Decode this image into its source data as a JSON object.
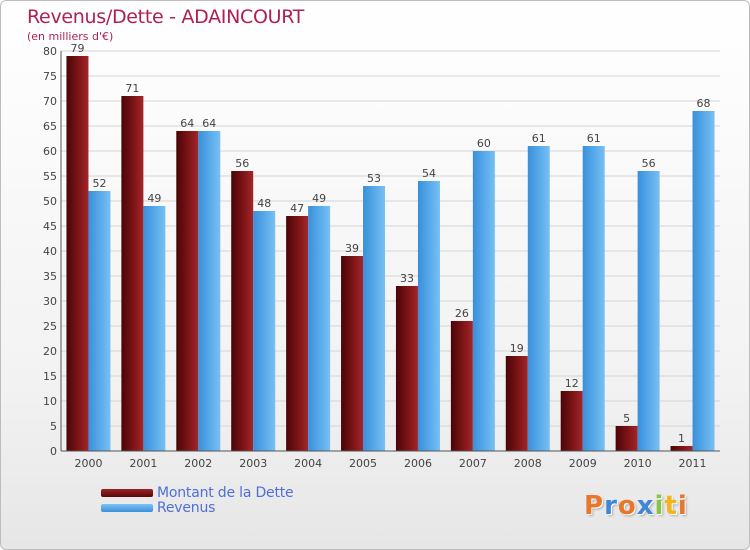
{
  "title": "Revenus/Dette - ADAINCOURT",
  "subtitle": "(en milliers d'€)",
  "chart_data": {
    "type": "bar",
    "categories": [
      "2000",
      "2001",
      "2002",
      "2003",
      "2004",
      "2005",
      "2006",
      "2007",
      "2008",
      "2009",
      "2010",
      "2011"
    ],
    "series": [
      {
        "name": "Montant de la Dette",
        "values": [
          79,
          71,
          64,
          56,
          47,
          39,
          33,
          26,
          19,
          12,
          5,
          1
        ],
        "color": "#7a1214"
      },
      {
        "name": "Revenus",
        "values": [
          52,
          49,
          64,
          48,
          49,
          53,
          54,
          60,
          61,
          61,
          56,
          68
        ],
        "color": "#4aa0e4"
      }
    ],
    "ylim": [
      0,
      80
    ],
    "yticks": [
      0,
      5,
      10,
      15,
      20,
      25,
      30,
      35,
      40,
      45,
      50,
      55,
      60,
      65,
      70,
      75,
      80
    ],
    "grid": true,
    "legend_position": "bottom-left"
  },
  "logo": {
    "letters": [
      {
        "ch": "P",
        "color": "#e8762b"
      },
      {
        "ch": "r",
        "color": "#3f86d6"
      },
      {
        "ch": "o",
        "color": "#e8762b"
      },
      {
        "ch": "x",
        "color": "#3f86d6"
      },
      {
        "ch": "i",
        "color": "#8bc34a"
      },
      {
        "ch": "t",
        "color": "#f2b51c"
      },
      {
        "ch": "i",
        "color": "#e8762b"
      }
    ]
  }
}
